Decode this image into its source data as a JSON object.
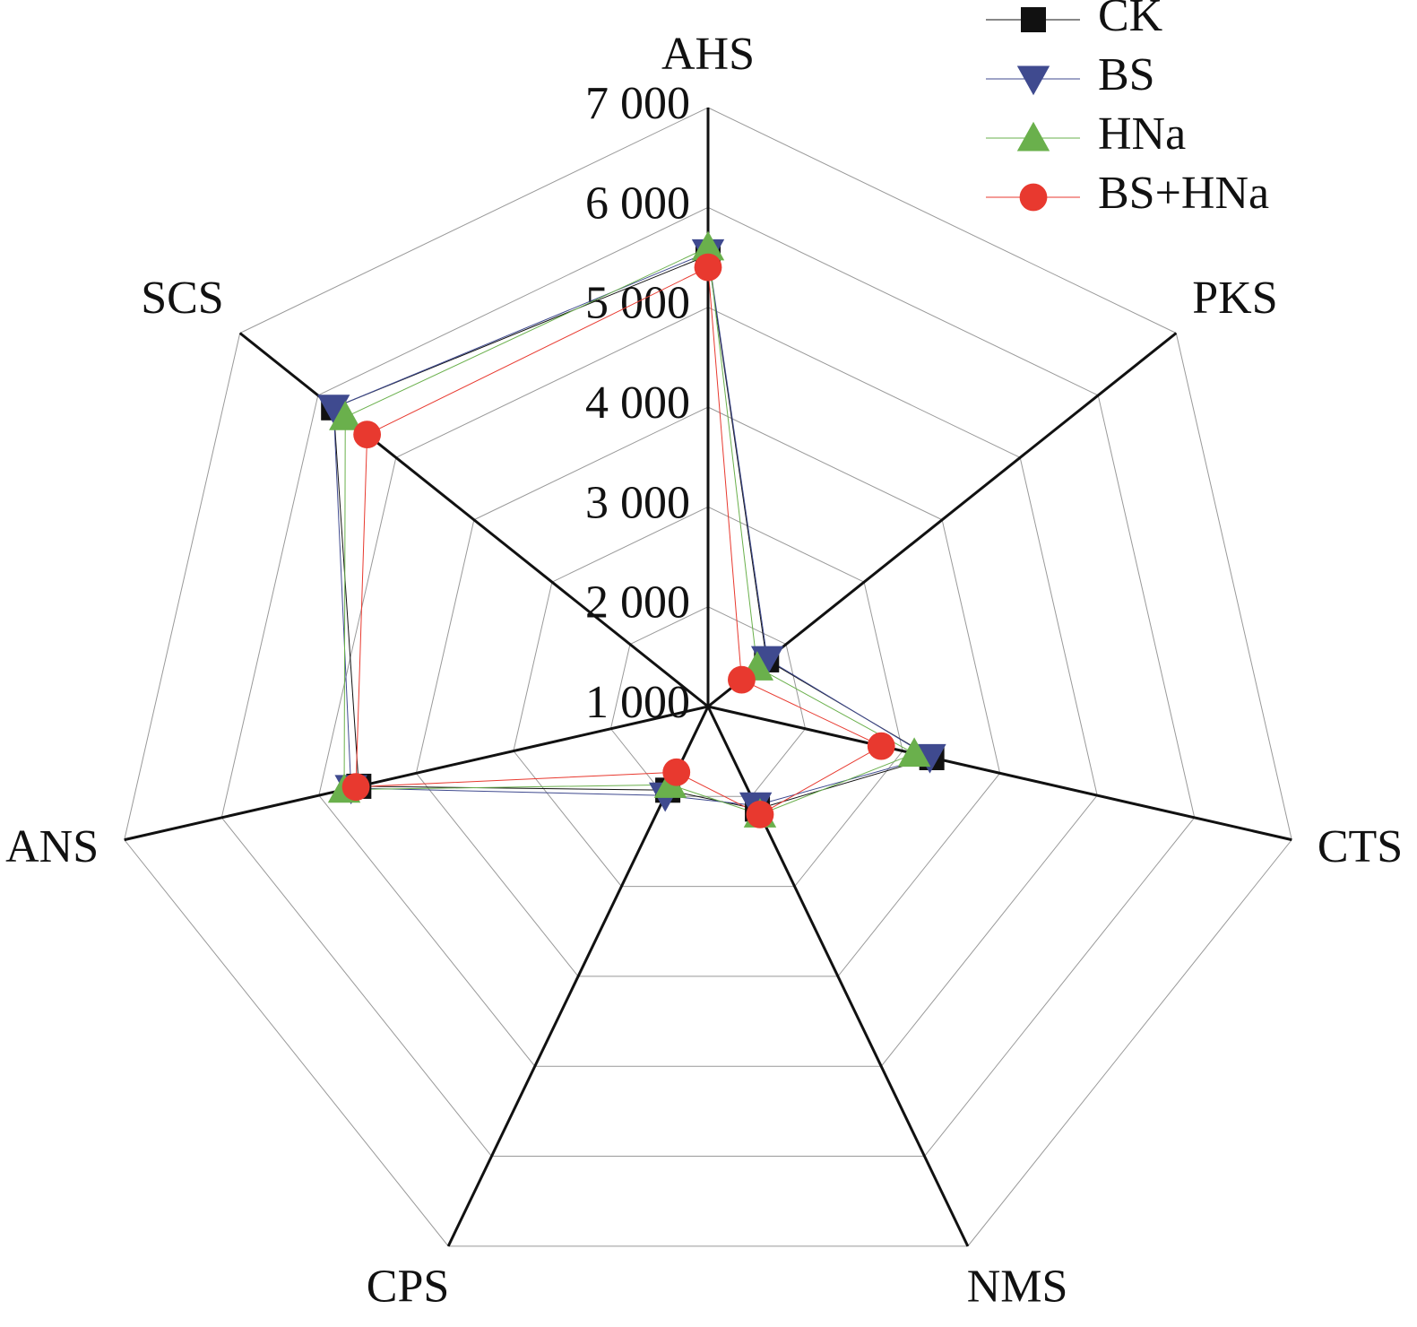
{
  "chart_data": {
    "type": "radar",
    "categories": [
      "AHS",
      "PKS",
      "CTS",
      "NMS",
      "CPS",
      "ANS",
      "SCS"
    ],
    "ylim": [
      1000,
      7000
    ],
    "yticks": [
      {
        "value": 1000,
        "label": "1 000"
      },
      {
        "value": 2000,
        "label": "2 000"
      },
      {
        "value": 3000,
        "label": "3 000"
      },
      {
        "value": 4000,
        "label": "4 000"
      },
      {
        "value": 5000,
        "label": "5 000"
      },
      {
        "value": 6000,
        "label": "6 000"
      },
      {
        "value": 7000,
        "label": "7 000"
      }
    ],
    "grid": true,
    "legend": "top-right",
    "series": [
      {
        "name": "CK",
        "color": "#111111",
        "marker": "square",
        "values": [
          5520,
          1750,
          3300,
          2140,
          1930,
          4590,
          5800
        ]
      },
      {
        "name": "BS",
        "color": "#3f4a8f",
        "marker": "triangle-down",
        "values": [
          5550,
          1760,
          3280,
          2100,
          1990,
          4670,
          5800
        ]
      },
      {
        "name": "HNa",
        "color": "#6ab04c",
        "marker": "triangle-up",
        "values": [
          5600,
          1630,
          3120,
          2200,
          1870,
          4740,
          5650
        ]
      },
      {
        "name": "BS+HNa",
        "color": "#e8392f",
        "marker": "circle",
        "values": [
          5400,
          1430,
          2780,
          2200,
          1730,
          4620,
          5370
        ]
      }
    ]
  }
}
